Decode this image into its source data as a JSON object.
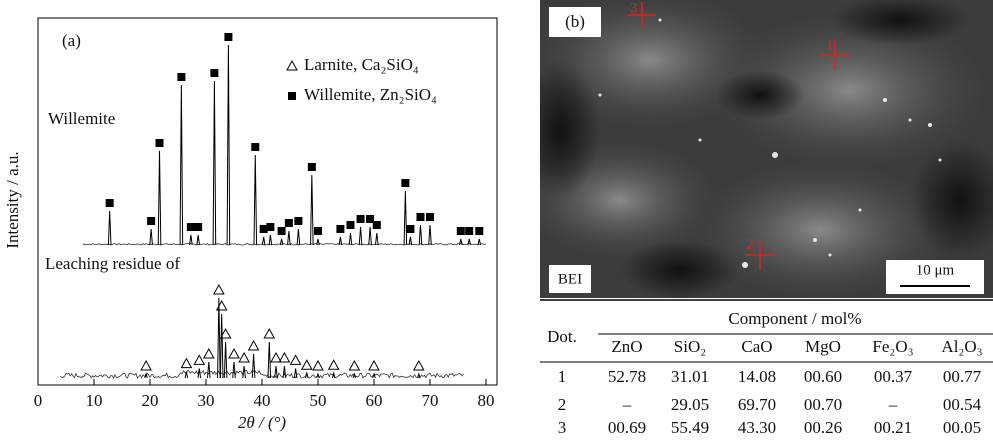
{
  "chart_data": {
    "type": "stick",
    "label": "(a)",
    "xlabel": "2θ / (°)",
    "ylabel": "Intensity / a.u.",
    "xlim": [
      0,
      80
    ],
    "xticks": [
      0,
      10,
      20,
      30,
      40,
      50,
      60,
      70,
      80
    ],
    "ylim": [
      0,
      100
    ],
    "series": [
      {
        "name": "Willemite, Zn₂SiO₄",
        "trace_label": "Willemite",
        "marker": "square",
        "color": "#000000",
        "x": [
          12.8,
          20.2,
          21.7,
          25.6,
          27.3,
          28.6,
          31.5,
          34.0,
          38.8,
          40.3,
          41.5,
          43.5,
          44.8,
          46.5,
          48.9,
          50.0,
          54.0,
          55.8,
          57.6,
          59.3,
          60.5,
          65.6,
          66.5,
          68.3,
          70.0,
          75.5,
          77.0,
          78.8
        ],
        "values": [
          17,
          8,
          47,
          80,
          5,
          5,
          82,
          100,
          45,
          4,
          5,
          3,
          7,
          8,
          35,
          3,
          4,
          6,
          9,
          9,
          6,
          27,
          4,
          10,
          10,
          3,
          3,
          3
        ]
      },
      {
        "name": "Larnite, Ca₂SiO₄",
        "trace_label": "Leaching residue of",
        "marker": "triangle",
        "color": "#000000",
        "x": [
          19.3,
          26.5,
          28.8,
          30.5,
          32.3,
          32.8,
          33.5,
          35.0,
          36.8,
          38.5,
          41.3,
          42.5,
          44.0,
          46.0,
          48.0,
          50.0,
          52.8,
          56.5,
          60.0,
          68.0
        ],
        "values": [
          5,
          8,
          12,
          20,
          100,
          80,
          45,
          20,
          15,
          30,
          45,
          15,
          15,
          12,
          6,
          5,
          6,
          5,
          5,
          5
        ]
      }
    ]
  },
  "image": {
    "panel": "(b)",
    "mode": "BEI",
    "scale_bar": "10 μm",
    "points": [
      "1",
      "2",
      "3"
    ]
  },
  "table": {
    "dot": "Dot.",
    "group": "Component / mol%",
    "columns": [
      "ZnO",
      "SiO₂",
      "CaO",
      "MgO",
      "Fe₂O₃",
      "Al₂O₃"
    ],
    "rows": [
      [
        "1",
        "52.78",
        "31.01",
        "14.08",
        "00.60",
        "00.37",
        "00.77"
      ],
      [
        "2",
        "–",
        "29.05",
        "69.70",
        "00.70",
        "–",
        "00.54"
      ],
      [
        "3",
        "00.69",
        "55.49",
        "43.30",
        "00.26",
        "00.21",
        "00.05"
      ]
    ]
  }
}
